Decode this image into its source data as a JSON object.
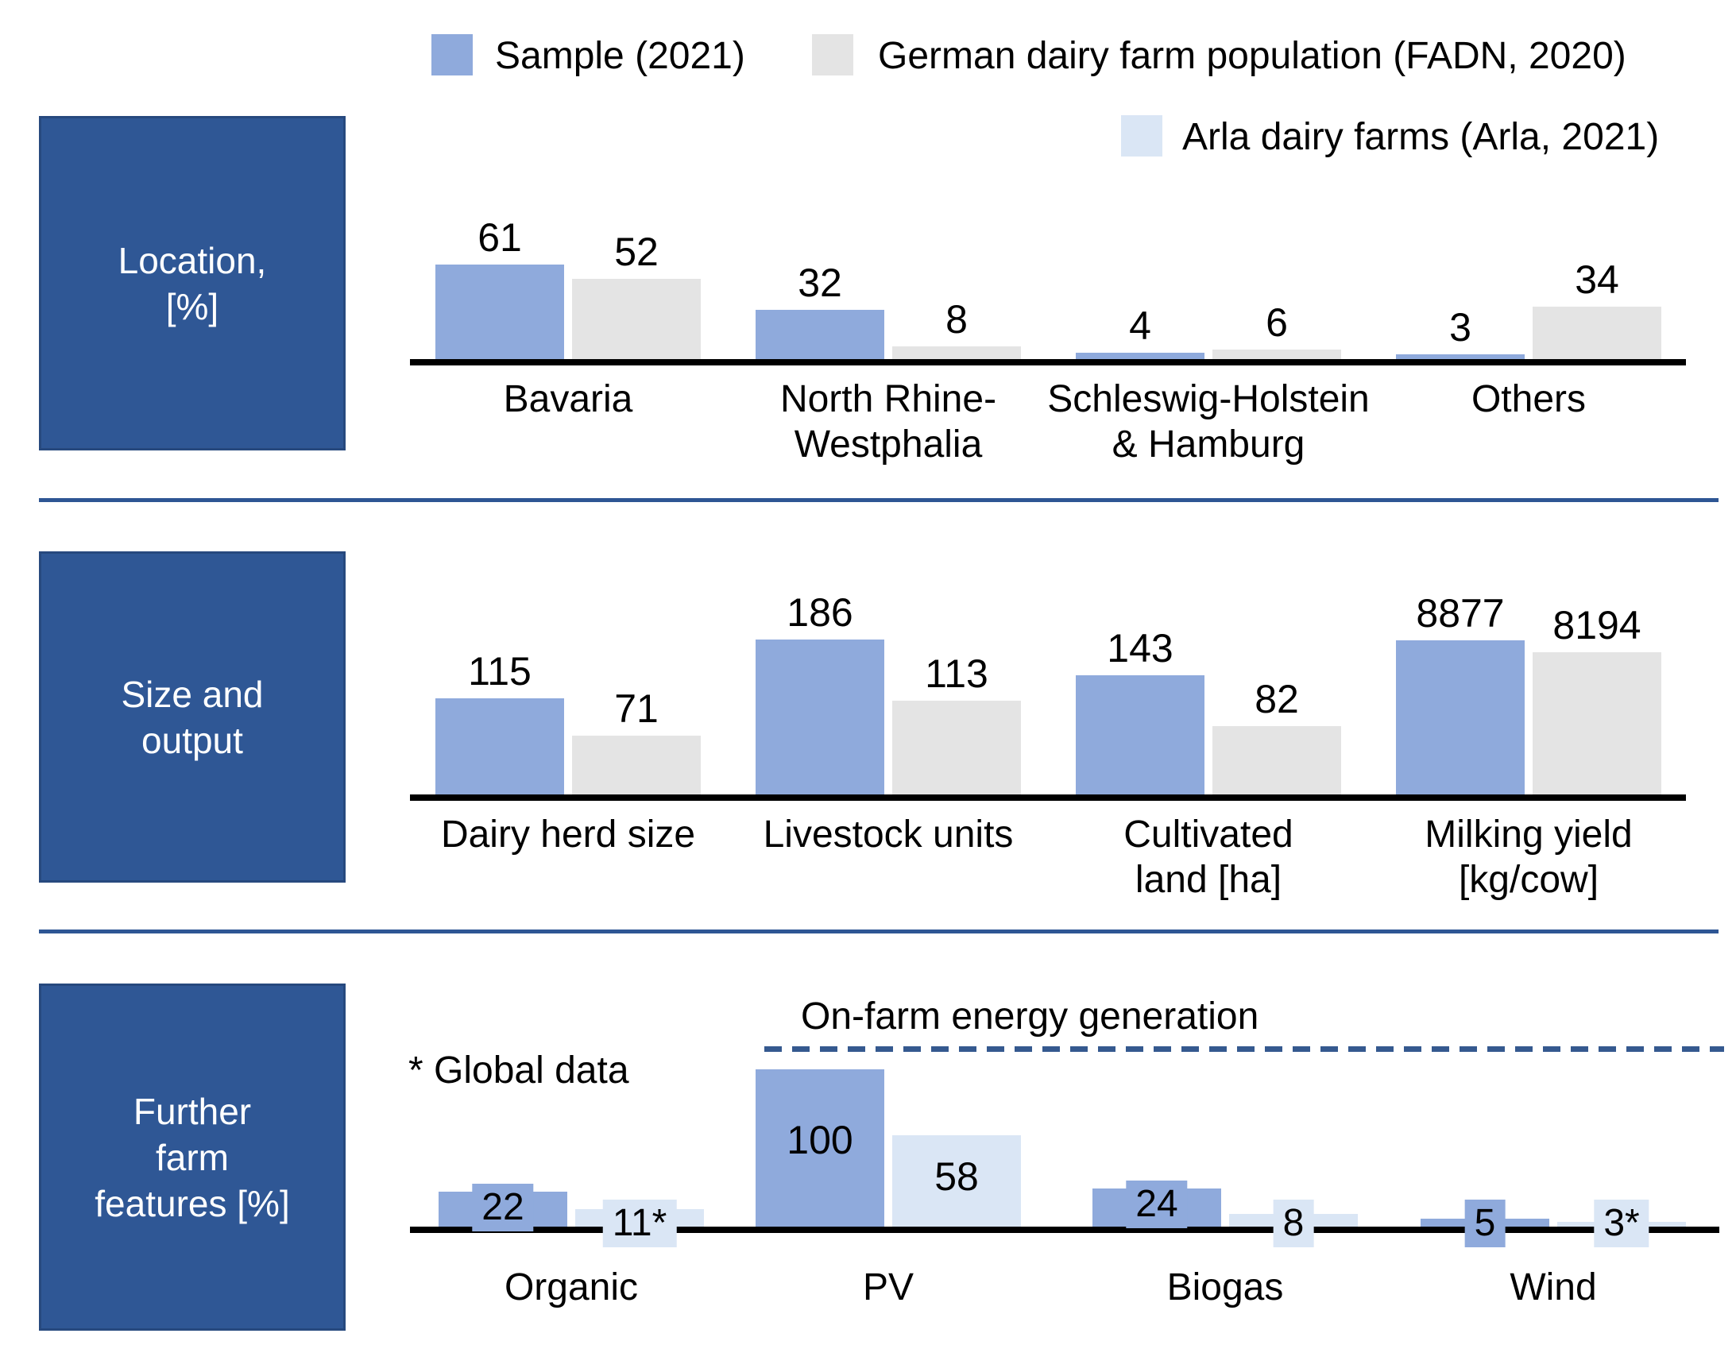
{
  "legend": {
    "items": [
      {
        "label": "Sample (2021)",
        "color": "#8FAADC"
      },
      {
        "label": "German dairy farm population (FADN, 2020)",
        "color": "#E4E4E4"
      },
      {
        "label": "Arla dairy farms (Arla, 2021)",
        "color": "#DAE6F5"
      }
    ]
  },
  "row_headers": [
    {
      "label": "Location,\n[%]"
    },
    {
      "label": "Size and\noutput"
    },
    {
      "label": "Further\nfarm\nfeatures [%]"
    }
  ],
  "panel3": {
    "energy_heading": "On-farm energy generation",
    "global_note": "* Global data"
  },
  "colors": {
    "sample_blue": "#8FAADC",
    "fadn_gray": "#E4E4E4",
    "arla_light_blue": "#DAE6F5",
    "header_box_blue": "#2F5795",
    "divider_blue": "#2E5694",
    "dashed_line_blue": "#35598F",
    "axis_black": "#000000"
  },
  "chart_data": [
    {
      "type": "bar",
      "title": "Location, [%]",
      "unit": "%",
      "categories": [
        "Bavaria",
        "North Rhine-\nWestphalia",
        "Schleswig-Holstein\n& Hamburg",
        "Others"
      ],
      "series": [
        {
          "name": "Sample (2021)",
          "values": [
            61,
            32,
            4,
            3
          ],
          "labels": [
            "61",
            "32",
            "4",
            "3"
          ]
        },
        {
          "name": "German dairy farm population (FADN, 2020)",
          "values": [
            52,
            8,
            6,
            34
          ],
          "labels": [
            "52",
            "8",
            "6",
            "34"
          ]
        }
      ],
      "ylim": [
        0,
        70
      ],
      "grid": false,
      "value_axis_visible": false,
      "legend_position": "top"
    },
    {
      "type": "bar",
      "title": "Size and output",
      "categories": [
        "Dairy herd size",
        "Livestock units",
        "Cultivated\nland [ha]",
        "Milking yield\n[kg/cow]"
      ],
      "series": [
        {
          "name": "Sample (2021)",
          "values": [
            115,
            186,
            143,
            8877
          ],
          "labels": [
            "115",
            "186",
            "143",
            "8877"
          ]
        },
        {
          "name": "German dairy farm population (FADN, 2020)",
          "values": [
            71,
            113,
            82,
            8194
          ],
          "labels": [
            "71",
            "113",
            "82",
            "8194"
          ]
        }
      ],
      "grid": false,
      "value_axis_visible": false,
      "notes": "Milking yield [kg/cow] pair is drawn on its own scale relative to the other categories"
    },
    {
      "type": "bar",
      "title": "Further farm features [%]",
      "unit": "%",
      "categories": [
        "Organic",
        "PV",
        "Biogas",
        "Wind"
      ],
      "series": [
        {
          "name": "Sample (2021)",
          "values": [
            22,
            100,
            24,
            5
          ],
          "labels": [
            "22",
            "100",
            "24",
            "5"
          ]
        },
        {
          "name": "Arla dairy farms (Arla, 2021)",
          "values": [
            11,
            58,
            8,
            3
          ],
          "labels": [
            "11*",
            "58",
            "8",
            "3*"
          ]
        }
      ],
      "ylim": [
        0,
        100
      ],
      "grid": false,
      "value_axis_visible": false,
      "annotations": [
        {
          "text": "* Global data",
          "meaning": "values marked with * are global data"
        },
        {
          "text": "On-farm energy generation",
          "covers_categories": [
            "PV",
            "Biogas",
            "Wind"
          ],
          "style": "dashed bracket line"
        }
      ]
    }
  ]
}
